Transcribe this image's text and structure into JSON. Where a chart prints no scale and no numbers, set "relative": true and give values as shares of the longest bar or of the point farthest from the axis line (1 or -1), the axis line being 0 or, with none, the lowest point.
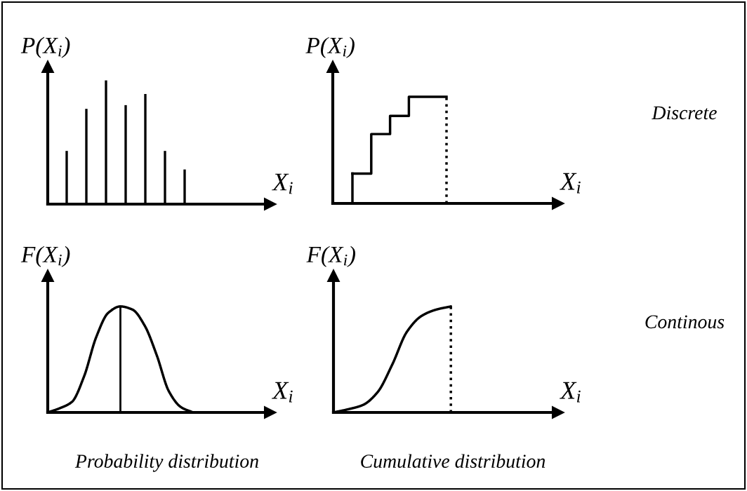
{
  "chart_data": [
    {
      "type": "bar",
      "relative": true,
      "ylabel": "P(X$_{i}$)",
      "xlabel": "X$_{i}$",
      "categories": [
        null,
        null,
        null,
        null,
        null,
        null,
        null
      ],
      "values": [
        0.43,
        0.77,
        1,
        0.8,
        0.89,
        0.43,
        0.28
      ],
      "color": "#000000"
    },
    {
      "type": "step",
      "relative": true,
      "ylabel": "P(X$_{i}$)",
      "xlabel": "X$_{i}$",
      "categories": [
        null,
        null,
        null,
        null,
        null,
        null
      ],
      "values": [
        0.28,
        0.65,
        0.82,
        1,
        1,
        1
      ],
      "color": "#000000",
      "annotations": [
        "Discrete"
      ]
    },
    {
      "type": "line",
      "relative": true,
      "ylabel": "F(X$_{i}$)",
      "xlabel": "X$_{i}$",
      "categories": [
        null,
        null,
        null,
        null,
        null,
        null,
        null,
        null,
        null,
        null,
        null,
        null,
        null
      ],
      "values": [
        0,
        0.04,
        0.1,
        0.34,
        0.71,
        0.94,
        1,
        0.97,
        0.82,
        0.54,
        0.2,
        0.05,
        0
      ],
      "color": "#000000",
      "annotations": [
        "Probability distribution"
      ]
    },
    {
      "type": "line",
      "relative": true,
      "ylabel": "F(X$_{i}$)",
      "xlabel": "X$_{i}$",
      "categories": [
        null,
        null,
        null,
        null,
        null,
        null,
        null,
        null,
        null
      ],
      "values": [
        0,
        0.03,
        0.07,
        0.19,
        0.45,
        0.76,
        0.91,
        0.97,
        1
      ],
      "color": "#000000",
      "annotations": [
        "Continous",
        "Cumulative distribution"
      ]
    }
  ]
}
